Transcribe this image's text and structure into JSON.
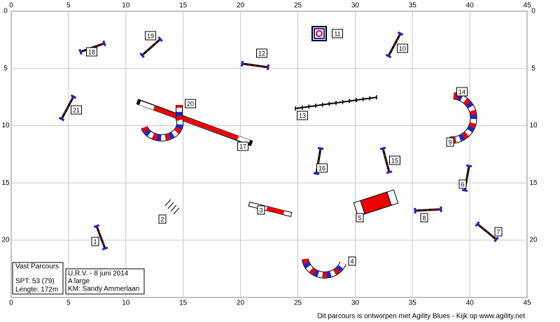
{
  "axis": {
    "x_labels": [
      0,
      5,
      10,
      15,
      20,
      25,
      30,
      35,
      40,
      45
    ],
    "y_labels": [
      0,
      5,
      10,
      15,
      20
    ]
  },
  "obstacles": [
    "1",
    "2",
    "3",
    "4",
    "5",
    "6",
    "7",
    "8",
    "9",
    "10",
    "11",
    "12",
    "13",
    "14",
    "15",
    "16",
    "17",
    "18",
    "19",
    "20",
    "21"
  ],
  "info_box": {
    "title": "Vast Parcours",
    "spt": "SPT:  53 (79)",
    "length": "Lengte: 172m"
  },
  "event_box": {
    "event": "U.R.V. - 8 juni 2014",
    "class": "A large",
    "judge": "KM: Sandy Ammerlaan"
  },
  "footer": "Dit parcours is ontworpen met Agility Blues - Kijk op www.agility.net"
}
